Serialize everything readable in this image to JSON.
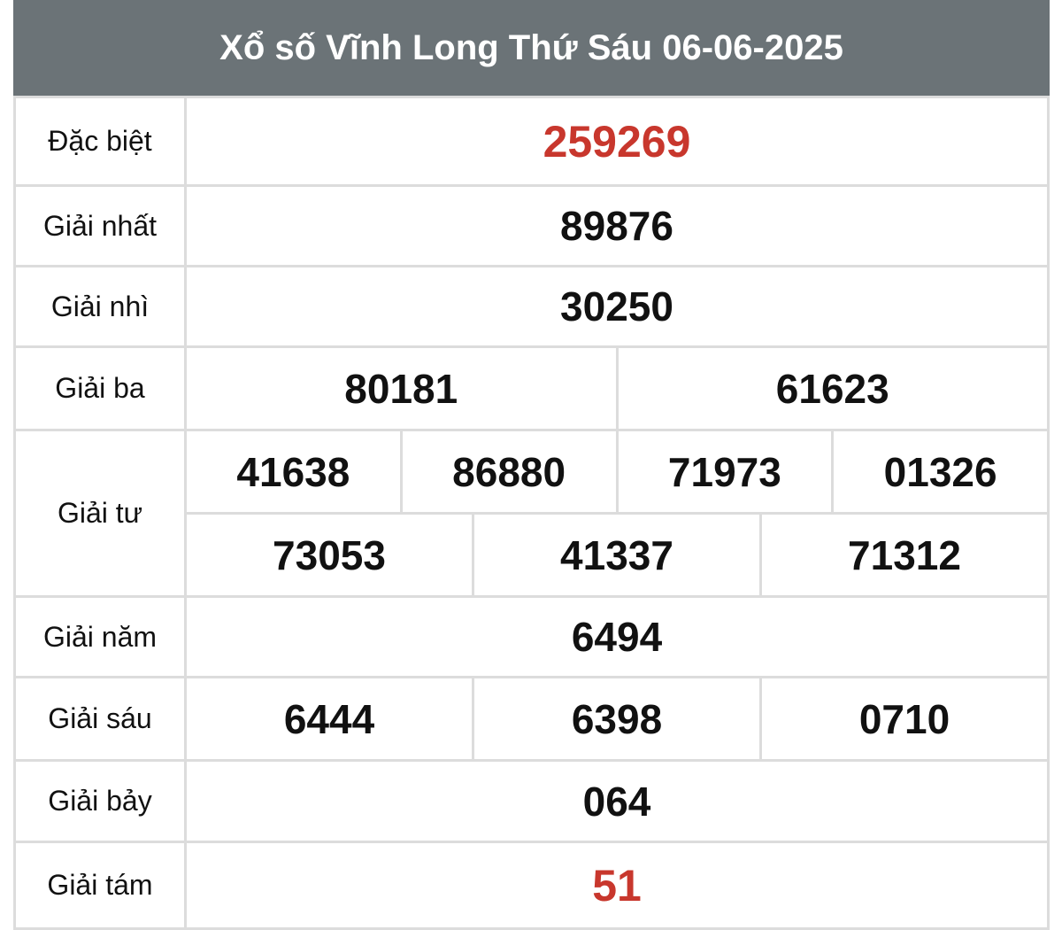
{
  "title": "Xổ số Vĩnh Long Thứ Sáu 06-06-2025",
  "colors": {
    "header_bg": "#6b7377",
    "highlight": "#c8372d",
    "border": "#dcdcdc"
  },
  "prizes": [
    {
      "label": "Đặc biệt",
      "numbers": [
        "259269"
      ]
    },
    {
      "label": "Giải nhất",
      "numbers": [
        "89876"
      ]
    },
    {
      "label": "Giải nhì",
      "numbers": [
        "30250"
      ]
    },
    {
      "label": "Giải ba",
      "numbers": [
        "80181",
        "61623"
      ]
    },
    {
      "label": "Giải tư",
      "numbers": [
        "41638",
        "86880",
        "71973",
        "01326",
        "73053",
        "41337",
        "71312"
      ]
    },
    {
      "label": "Giải năm",
      "numbers": [
        "6494"
      ]
    },
    {
      "label": "Giải sáu",
      "numbers": [
        "6444",
        "6398",
        "0710"
      ]
    },
    {
      "label": "Giải bảy",
      "numbers": [
        "064"
      ]
    },
    {
      "label": "Giải tám",
      "numbers": [
        "51"
      ]
    }
  ]
}
